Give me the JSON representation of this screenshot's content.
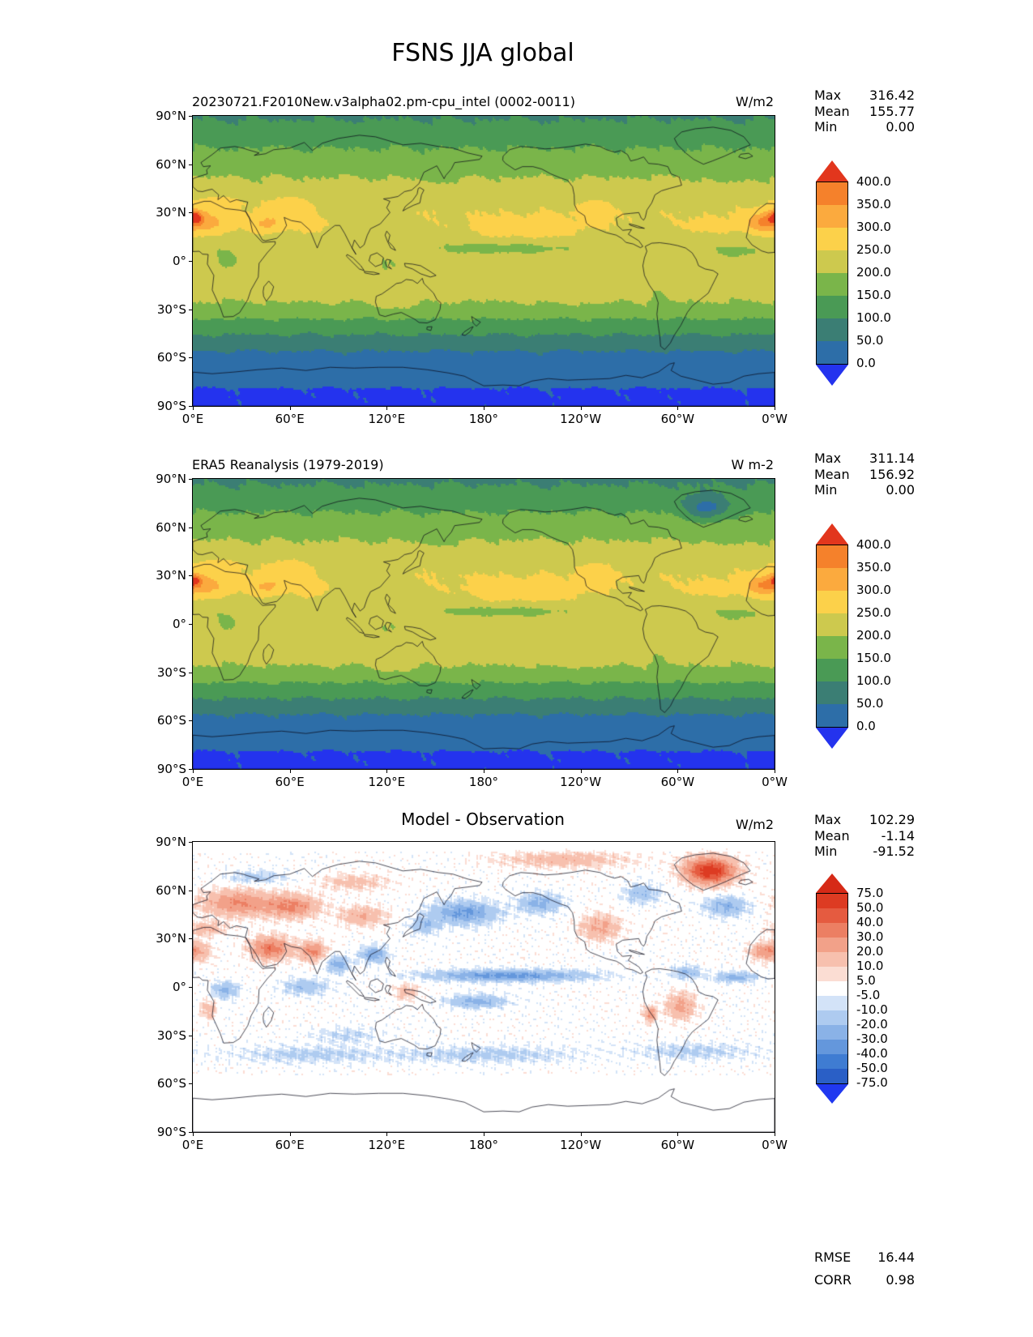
{
  "figure": {
    "title": "FSNS JJA global"
  },
  "labels": {
    "max": "Max",
    "mean": "Mean",
    "min": "Min",
    "rmse": "RMSE",
    "corr": "CORR"
  },
  "axes": {
    "lat_ticks": [
      "90°N",
      "60°N",
      "30°N",
      "0°",
      "30°S",
      "60°S",
      "90°S"
    ],
    "lon_ticks": [
      "0°E",
      "60°E",
      "120°E",
      "180°",
      "120°W",
      "60°W",
      "0°W"
    ]
  },
  "chart_data": {
    "type": "heatmap",
    "subtype": "global filled-contour maps, equirectangular projection, longitude 0E eastward to 0W, Pacific-centered",
    "variable": "FSNS",
    "season": "JJA",
    "panels": [
      {
        "id": "model",
        "title": "20230721.F2010New.v3alpha02.pm-cpu_intel (0002-0011)",
        "units": "W/m2",
        "stats": {
          "max": "316.42",
          "mean": "155.77",
          "min": "0.00"
        },
        "field": "absolute",
        "colorbar": {
          "ticks": [
            "400.0",
            "350.0",
            "300.0",
            "250.0",
            "200.0",
            "150.0",
            "100.0",
            "50.0",
            "0.0"
          ],
          "levels": [
            0,
            50,
            100,
            150,
            200,
            250,
            300,
            350,
            400
          ],
          "colors": [
            "#2d6ea8",
            "#3b7e74",
            "#4a9a55",
            "#7ab54a",
            "#cdc94e",
            "#fcd14a",
            "#fbaa3e",
            "#f5812b"
          ],
          "under": "#2433ee",
          "over": "#e2361d"
        },
        "approx_zonal_profile": [
          [
            90,
            95
          ],
          [
            80,
            118
          ],
          [
            70,
            150
          ],
          [
            60,
            172
          ],
          [
            52,
            200
          ],
          [
            45,
            215
          ],
          [
            38,
            235
          ],
          [
            30,
            246
          ],
          [
            22,
            242
          ],
          [
            15,
            228
          ],
          [
            8,
            215
          ],
          [
            0,
            222
          ],
          [
            -8,
            226
          ],
          [
            -15,
            222
          ],
          [
            -22,
            210
          ],
          [
            -30,
            185
          ],
          [
            -36,
            150
          ],
          [
            -42,
            118
          ],
          [
            -50,
            80
          ],
          [
            -57,
            45
          ],
          [
            -65,
            30
          ],
          [
            -72,
            25
          ],
          [
            -77,
            12
          ],
          [
            -80,
            -5
          ],
          [
            -90,
            -8
          ]
        ],
        "approx_anomalies": [
          [
            24,
            6,
            8,
            16,
            85
          ],
          [
            27,
            1,
            4,
            5,
            130
          ],
          [
            24,
            352,
            6,
            9,
            80
          ],
          [
            23,
            46,
            6,
            10,
            75
          ],
          [
            36,
            15,
            4,
            14,
            45
          ],
          [
            34,
            58,
            6,
            14,
            40
          ],
          [
            21,
            74,
            6,
            8,
            28
          ],
          [
            19,
            208,
            8,
            38,
            32
          ],
          [
            21,
            322,
            6,
            16,
            28
          ],
          [
            31,
            248,
            7,
            9,
            42
          ],
          [
            8,
            192,
            3.5,
            42,
            -42
          ],
          [
            6,
            338,
            3.5,
            14,
            -35
          ],
          [
            1,
            22,
            7,
            9,
            -32
          ],
          [
            -3,
            118,
            7,
            16,
            -25
          ],
          [
            27,
            112,
            5,
            9,
            -35
          ],
          [
            54,
            152,
            5,
            12,
            -25
          ],
          [
            55,
            332,
            6,
            13,
            -20
          ],
          [
            -18,
            80,
            5,
            22,
            18
          ],
          [
            -20,
            235,
            6,
            28,
            14
          ],
          [
            -24,
            125,
            6,
            12,
            30
          ],
          [
            -24,
            288,
            8,
            4,
            -28
          ],
          [
            -7,
            300,
            6,
            9,
            -18
          ],
          [
            31,
            89,
            3,
            8,
            -22
          ]
        ]
      },
      {
        "id": "obs",
        "title": "ERA5 Reanalysis (1979-2019)",
        "units": "W m-2",
        "stats": {
          "max": "311.14",
          "mean": "156.92",
          "min": "0.00"
        },
        "field": "absolute",
        "colorbar": {
          "ticks": [
            "400.0",
            "350.0",
            "300.0",
            "250.0",
            "200.0",
            "150.0",
            "100.0",
            "50.0",
            "0.0"
          ],
          "levels": [
            0,
            50,
            100,
            150,
            200,
            250,
            300,
            350,
            400
          ],
          "colors": [
            "#2d6ea8",
            "#3b7e74",
            "#4a9a55",
            "#7ab54a",
            "#cdc94e",
            "#fcd14a",
            "#fbaa3e",
            "#f5812b"
          ],
          "under": "#2433ee",
          "over": "#e2361d"
        },
        "approx_zonal_profile": [
          [
            90,
            92
          ],
          [
            80,
            115
          ],
          [
            70,
            148
          ],
          [
            60,
            175
          ],
          [
            52,
            200
          ],
          [
            45,
            216
          ],
          [
            38,
            236
          ],
          [
            30,
            247
          ],
          [
            22,
            243
          ],
          [
            15,
            229
          ],
          [
            8,
            216
          ],
          [
            0,
            223
          ],
          [
            -8,
            227
          ],
          [
            -15,
            223
          ],
          [
            -22,
            211
          ],
          [
            -30,
            186
          ],
          [
            -36,
            152
          ],
          [
            -42,
            120
          ],
          [
            -50,
            82
          ],
          [
            -57,
            46
          ],
          [
            -65,
            30
          ],
          [
            -72,
            25
          ],
          [
            -77,
            12
          ],
          [
            -80,
            -5
          ],
          [
            -90,
            -8
          ]
        ],
        "approx_anomalies": [
          [
            24,
            6,
            8,
            16,
            82
          ],
          [
            27,
            1,
            3.5,
            4,
            112
          ],
          [
            24,
            352,
            6,
            9,
            78
          ],
          [
            23,
            46,
            6,
            10,
            72
          ],
          [
            36,
            15,
            4,
            14,
            45
          ],
          [
            34,
            58,
            6,
            14,
            38
          ],
          [
            21,
            74,
            6,
            8,
            34
          ],
          [
            19,
            206,
            8,
            42,
            34
          ],
          [
            21,
            322,
            6,
            16,
            28
          ],
          [
            31,
            248,
            7,
            9,
            40
          ],
          [
            8,
            192,
            3.5,
            42,
            -40
          ],
          [
            6,
            338,
            3.5,
            14,
            -35
          ],
          [
            1,
            22,
            7,
            9,
            -30
          ],
          [
            -3,
            118,
            7,
            16,
            -25
          ],
          [
            27,
            112,
            5,
            9,
            -32
          ],
          [
            54,
            152,
            5,
            12,
            -24
          ],
          [
            55,
            332,
            6,
            13,
            -18
          ],
          [
            -18,
            80,
            5,
            22,
            18
          ],
          [
            -20,
            235,
            6,
            28,
            14
          ],
          [
            -24,
            125,
            6,
            12,
            28
          ],
          [
            -24,
            288,
            8,
            4,
            -26
          ],
          [
            -7,
            300,
            6,
            9,
            -16
          ],
          [
            31,
            89,
            3,
            8,
            -20
          ],
          [
            72,
            318,
            7,
            13,
            -115
          ]
        ]
      },
      {
        "id": "diff",
        "title": "Model - Observation",
        "units": "W/m2",
        "stats": {
          "max": "102.29",
          "mean": "-1.14",
          "min": "-91.52",
          "rmse": "16.44",
          "corr": "0.98"
        },
        "field": "diff",
        "colorbar": {
          "ticks": [
            "75.0",
            "50.0",
            "40.0",
            "30.0",
            "20.0",
            "10.0",
            "5.0",
            "-5.0",
            "-10.0",
            "-20.0",
            "-30.0",
            "-40.0",
            "-50.0",
            "-75.0"
          ],
          "levels": [
            -75,
            -50,
            -40,
            -30,
            -20,
            -10,
            -5,
            5,
            10,
            20,
            30,
            40,
            50,
            75
          ],
          "colors": [
            "#2a5fc6",
            "#3f7cd2",
            "#6497dc",
            "#8ab2e7",
            "#aecbf0",
            "#d3e3f8",
            "#ffffff",
            "#fbddd3",
            "#f7c0ae",
            "#f2a189",
            "#ec7f63",
            "#e55b40",
            "#dd3b22"
          ],
          "under": "#2038f0",
          "over": "#d62a17"
        },
        "approx_zonal_profile": [
          [
            90,
            0
          ],
          [
            -90,
            0
          ]
        ],
        "approx_anomalies": [
          [
            52,
            28,
            8,
            22,
            30
          ],
          [
            50,
            62,
            7,
            16,
            30
          ],
          [
            44,
            105,
            6,
            14,
            20
          ],
          [
            24,
            48,
            7,
            12,
            38
          ],
          [
            22,
            74,
            6,
            8,
            32
          ],
          [
            22,
            2,
            6,
            9,
            22
          ],
          [
            22,
            352,
            5,
            8,
            20
          ],
          [
            72,
            320,
            8,
            15,
            60
          ],
          [
            79,
            230,
            5,
            40,
            16
          ],
          [
            37,
            252,
            8,
            12,
            22
          ],
          [
            -12,
            302,
            8,
            9,
            24
          ],
          [
            -17,
            283,
            5,
            4,
            28
          ],
          [
            -14,
            10,
            6,
            5,
            16
          ],
          [
            -3,
            132,
            5,
            7,
            16
          ],
          [
            36,
            8,
            4,
            12,
            18
          ],
          [
            65,
            100,
            5,
            20,
            14
          ],
          [
            46,
            168,
            7,
            20,
            -32
          ],
          [
            52,
            215,
            6,
            13,
            -24
          ],
          [
            50,
            330,
            6,
            13,
            -24
          ],
          [
            7,
            195,
            3.5,
            48,
            -34
          ],
          [
            -9,
            176,
            4,
            18,
            -24
          ],
          [
            6,
            336,
            3,
            12,
            -26
          ],
          [
            14,
            90,
            5,
            7,
            -26
          ],
          [
            20,
            112,
            5,
            8,
            -28
          ],
          [
            0,
            70,
            5,
            14,
            -18
          ],
          [
            -2,
            20,
            5,
            8,
            -22
          ],
          [
            -42,
            180,
            5,
            55,
            -13
          ],
          [
            -42,
            70,
            5,
            45,
            -12
          ],
          [
            -40,
            310,
            5,
            35,
            -12
          ],
          [
            58,
            278,
            6,
            11,
            -18
          ],
          [
            38,
            143,
            5,
            8,
            -20
          ],
          [
            9,
            306,
            4,
            9,
            -20
          ],
          [
            -30,
            95,
            5,
            20,
            -10
          ],
          [
            68,
            40,
            4,
            18,
            -14
          ]
        ]
      }
    ]
  }
}
